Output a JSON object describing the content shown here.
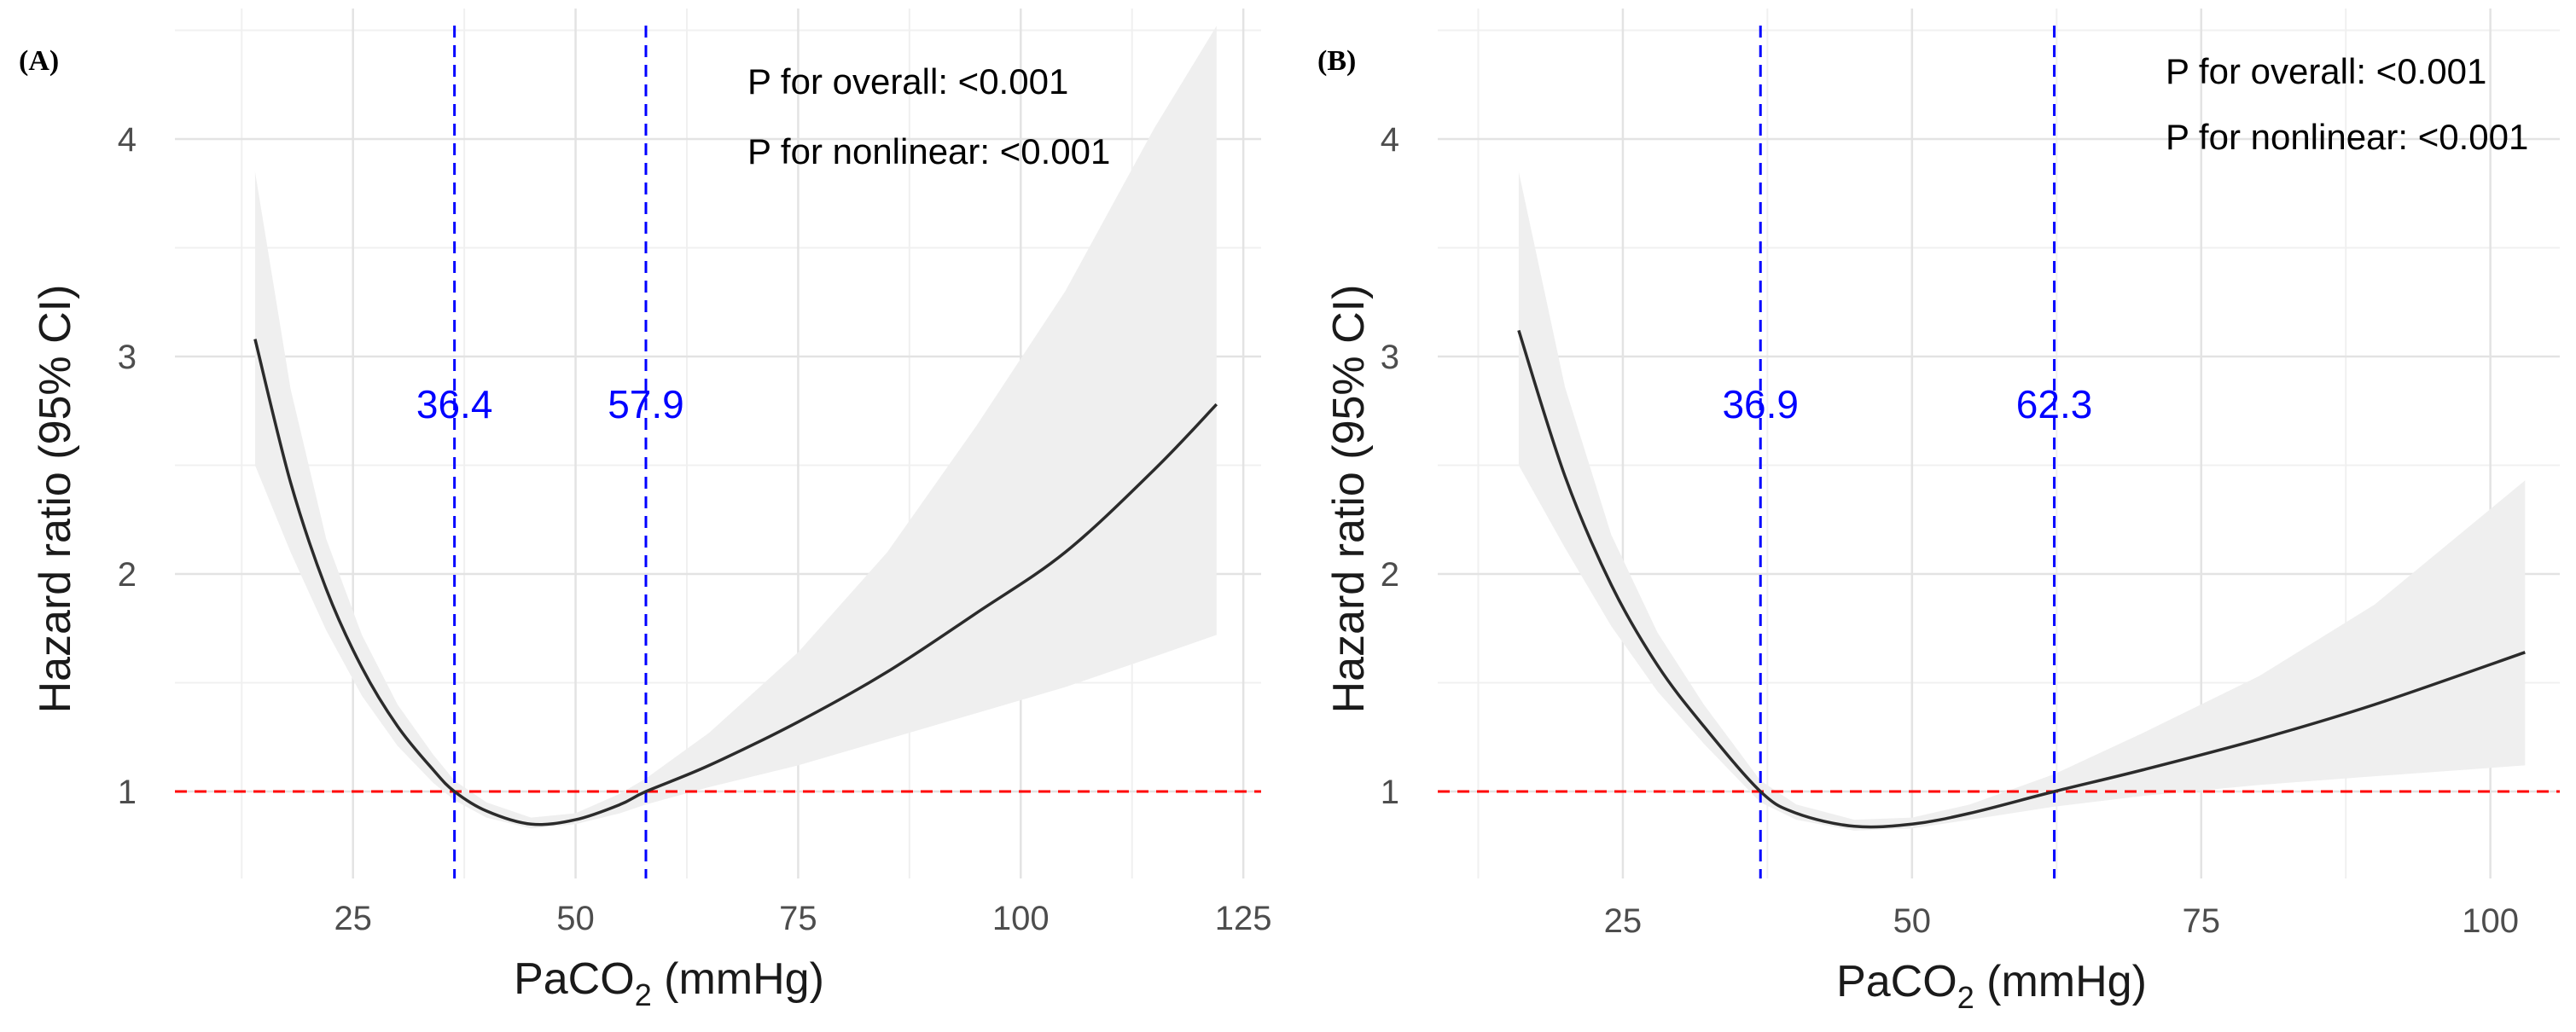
{
  "figure": {
    "background": "#ffffff"
  },
  "style": {
    "grid_major": "#e3e3e3",
    "grid_minor": "#f0f0f0",
    "curve": "#2b2b2b",
    "ci_fill": "#efefef",
    "ref_line": "#ff0000",
    "cutoff_line": "#0000ff",
    "tick_text": "#4d4d4d",
    "axis_title": "#1a1a1a",
    "annotation_text": "#000000"
  },
  "chart_data": [
    {
      "type": "line",
      "panel_label": "(A)",
      "xlabel": "PaCO2 (mmHg)",
      "ylabel": "Hazard ratio (95% CI)",
      "xlim": [
        5,
        127
      ],
      "ylim": [
        0.6,
        4.6
      ],
      "xticks": [
        25,
        50,
        75,
        100,
        125
      ],
      "yticks": [
        1,
        2,
        3,
        4
      ],
      "grid": true,
      "annotations": [
        "P for overall: <0.001",
        "P for nonlinear: <0.001"
      ],
      "reference_hr": 1,
      "cutoffs": [
        {
          "x": 36.4,
          "label": "36.4"
        },
        {
          "x": 57.9,
          "label": "57.9"
        }
      ],
      "series": [
        {
          "x": [
            14,
            18,
            22,
            26,
            30,
            34,
            36.4,
            40,
            45,
            50,
            55,
            57.9,
            65,
            75,
            85,
            95,
            105,
            115,
            122
          ],
          "hr": [
            3.08,
            2.42,
            1.93,
            1.57,
            1.3,
            1.1,
            1.0,
            0.91,
            0.85,
            0.87,
            0.94,
            1.0,
            1.12,
            1.32,
            1.55,
            1.82,
            2.1,
            2.48,
            2.78
          ],
          "lower": [
            2.5,
            2.1,
            1.74,
            1.44,
            1.21,
            1.04,
            0.96,
            0.88,
            0.83,
            0.85,
            0.9,
            0.94,
            1.02,
            1.12,
            1.24,
            1.36,
            1.48,
            1.62,
            1.72
          ],
          "upper": [
            3.85,
            2.85,
            2.16,
            1.72,
            1.4,
            1.17,
            1.05,
            0.95,
            0.88,
            0.9,
            0.99,
            1.06,
            1.27,
            1.64,
            2.1,
            2.68,
            3.3,
            4.05,
            4.52
          ]
        }
      ]
    },
    {
      "type": "line",
      "panel_label": "(B)",
      "xlabel": "PaCO2 (mmHg)",
      "ylabel": "Hazard ratio (95% CI)",
      "xlim": [
        9,
        106
      ],
      "ylim": [
        0.6,
        4.6
      ],
      "xticks": [
        25,
        50,
        75,
        100
      ],
      "yticks": [
        1,
        2,
        3,
        4
      ],
      "grid": true,
      "annotations": [
        "P for overall: <0.001",
        "P for nonlinear: <0.001"
      ],
      "reference_hr": 1,
      "cutoffs": [
        {
          "x": 36.9,
          "label": "36.9"
        },
        {
          "x": 62.3,
          "label": "62.3"
        }
      ],
      "series": [
        {
          "x": [
            16,
            20,
            24,
            28,
            32,
            36.9,
            40,
            45,
            50,
            55,
            62.3,
            70,
            80,
            90,
            103
          ],
          "hr": [
            3.12,
            2.45,
            1.95,
            1.58,
            1.3,
            1.0,
            0.9,
            0.84,
            0.85,
            0.9,
            1.0,
            1.1,
            1.24,
            1.4,
            1.64
          ],
          "lower": [
            2.5,
            2.12,
            1.76,
            1.46,
            1.22,
            0.95,
            0.87,
            0.82,
            0.83,
            0.87,
            0.93,
            0.98,
            1.03,
            1.07,
            1.12
          ],
          "upper": [
            3.85,
            2.86,
            2.18,
            1.73,
            1.4,
            1.05,
            0.94,
            0.87,
            0.88,
            0.94,
            1.08,
            1.27,
            1.53,
            1.86,
            2.43
          ]
        }
      ]
    }
  ]
}
